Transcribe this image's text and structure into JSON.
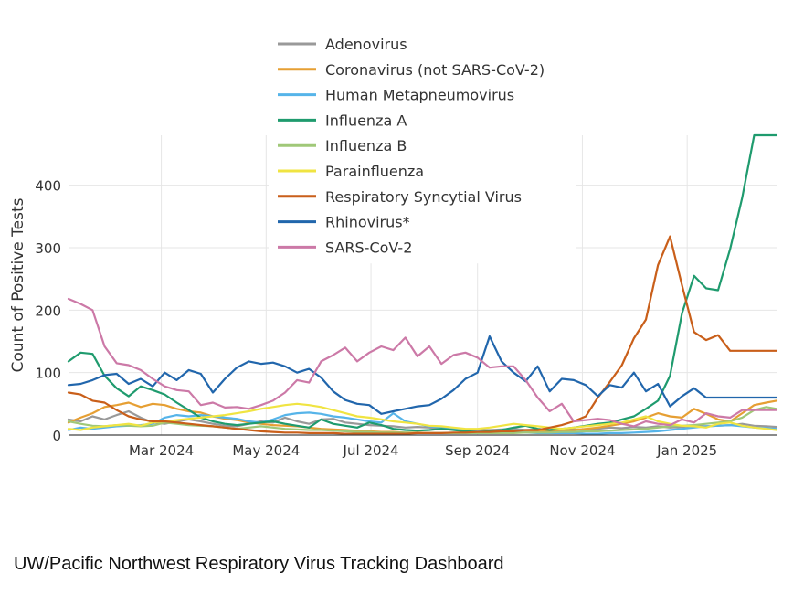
{
  "footer": {
    "title": "UW/Pacific Northwest Respiratory Virus Tracking Dashboard"
  },
  "chart_data": {
    "type": "line",
    "title": "",
    "xlabel": "",
    "ylabel": "Count of Positive Tests",
    "ylim": [
      0,
      480
    ],
    "yticks": [
      0,
      100,
      200,
      300,
      400
    ],
    "xlim": [
      "2024-01-07",
      "2025-02-22"
    ],
    "xticks": [
      {
        "date": "2024-03-01",
        "label": "Mar 2024"
      },
      {
        "date": "2024-05-01",
        "label": "May 2024"
      },
      {
        "date": "2024-07-01",
        "label": "Jul 2024"
      },
      {
        "date": "2024-09-01",
        "label": "Sep 2024"
      },
      {
        "date": "2024-11-01",
        "label": "Nov 2024"
      },
      {
        "date": "2025-01-01",
        "label": "Jan 2025"
      }
    ],
    "grid": true,
    "legend_position": "top-center",
    "x": [
      "2024-01-07",
      "2024-01-14",
      "2024-01-21",
      "2024-01-28",
      "2024-02-04",
      "2024-02-11",
      "2024-02-18",
      "2024-02-25",
      "2024-03-03",
      "2024-03-10",
      "2024-03-17",
      "2024-03-24",
      "2024-03-31",
      "2024-04-07",
      "2024-04-14",
      "2024-04-21",
      "2024-04-28",
      "2024-05-05",
      "2024-05-12",
      "2024-05-19",
      "2024-05-26",
      "2024-06-02",
      "2024-06-09",
      "2024-06-16",
      "2024-06-23",
      "2024-06-30",
      "2024-07-07",
      "2024-07-14",
      "2024-07-21",
      "2024-07-28",
      "2024-08-04",
      "2024-08-11",
      "2024-08-18",
      "2024-08-25",
      "2024-09-01",
      "2024-09-08",
      "2024-09-15",
      "2024-09-22",
      "2024-09-29",
      "2024-10-06",
      "2024-10-13",
      "2024-10-20",
      "2024-10-27",
      "2024-11-03",
      "2024-11-10",
      "2024-11-17",
      "2024-11-24",
      "2024-12-01",
      "2024-12-08",
      "2024-12-15",
      "2024-12-22",
      "2024-12-29",
      "2025-01-05",
      "2025-01-12",
      "2025-01-19",
      "2025-01-26",
      "2025-02-02",
      "2025-02-09",
      "2025-02-16",
      "2025-02-22"
    ],
    "series": [
      {
        "name": "Adenovirus",
        "color": "#999999",
        "values": [
          25,
          22,
          30,
          25,
          32,
          38,
          28,
          20,
          18,
          22,
          25,
          22,
          18,
          15,
          14,
          18,
          22,
          20,
          28,
          22,
          18,
          25,
          26,
          20,
          18,
          16,
          15,
          14,
          12,
          13,
          12,
          10,
          11,
          9,
          8,
          8,
          9,
          10,
          8,
          9,
          8,
          10,
          9,
          8,
          10,
          12,
          11,
          13,
          12,
          14,
          12,
          13,
          15,
          14,
          15,
          16,
          18,
          15,
          14,
          13
        ]
      },
      {
        "name": "Coronavirus (not SARS-CoV-2)",
        "color": "#E69F33",
        "values": [
          20,
          28,
          35,
          45,
          48,
          52,
          45,
          50,
          48,
          42,
          38,
          36,
          30,
          26,
          24,
          20,
          18,
          16,
          15,
          14,
          12,
          10,
          9,
          8,
          7,
          6,
          5,
          5,
          4,
          4,
          3,
          3,
          3,
          3,
          3,
          3,
          4,
          4,
          5,
          6,
          6,
          7,
          8,
          10,
          12,
          15,
          18,
          22,
          28,
          35,
          30,
          28,
          42,
          34,
          25,
          22,
          35,
          48,
          52,
          55
        ]
      },
      {
        "name": "Human Metapneumovirus",
        "color": "#56B4E9",
        "values": [
          8,
          12,
          10,
          12,
          14,
          15,
          16,
          18,
          28,
          32,
          30,
          32,
          30,
          28,
          26,
          22,
          20,
          25,
          32,
          35,
          36,
          34,
          30,
          28,
          25,
          22,
          20,
          35,
          22,
          18,
          14,
          12,
          10,
          8,
          6,
          5,
          5,
          4,
          4,
          3,
          3,
          3,
          3,
          2,
          2,
          3,
          3,
          4,
          5,
          6,
          8,
          10,
          12,
          14,
          15,
          16,
          14,
          12,
          11,
          10
        ]
      },
      {
        "name": "Influenza A",
        "color": "#1F9B6E",
        "values": [
          118,
          132,
          130,
          95,
          75,
          62,
          78,
          72,
          65,
          52,
          40,
          28,
          22,
          18,
          16,
          18,
          20,
          22,
          18,
          15,
          12,
          25,
          18,
          15,
          12,
          20,
          16,
          10,
          8,
          7,
          8,
          10,
          8,
          6,
          5,
          6,
          8,
          12,
          15,
          10,
          8,
          10,
          12,
          15,
          18,
          20,
          25,
          30,
          42,
          55,
          95,
          195,
          255,
          235,
          232,
          298,
          380,
          480,
          480,
          480
        ]
      },
      {
        "name": "Influenza B",
        "color": "#A0C878",
        "values": [
          22,
          18,
          15,
          14,
          16,
          15,
          14,
          15,
          20,
          18,
          16,
          15,
          14,
          12,
          10,
          12,
          14,
          12,
          10,
          9,
          8,
          8,
          7,
          6,
          5,
          5,
          4,
          4,
          4,
          3,
          3,
          3,
          3,
          3,
          3,
          3,
          3,
          3,
          4,
          4,
          4,
          5,
          5,
          6,
          6,
          7,
          8,
          9,
          10,
          12,
          14,
          15,
          16,
          18,
          20,
          22,
          28,
          40,
          45,
          42
        ]
      },
      {
        "name": "Parainfluenza",
        "color": "#F0E442",
        "values": [
          10,
          8,
          12,
          14,
          16,
          18,
          15,
          20,
          22,
          24,
          26,
          28,
          30,
          32,
          35,
          38,
          42,
          45,
          48,
          50,
          48,
          45,
          40,
          35,
          30,
          28,
          25,
          22,
          20,
          18,
          15,
          14,
          12,
          10,
          10,
          12,
          15,
          18,
          16,
          14,
          12,
          10,
          12,
          14,
          16,
          18,
          20,
          25,
          30,
          22,
          18,
          15,
          14,
          12,
          18,
          20,
          15,
          12,
          10,
          8
        ]
      },
      {
        "name": "Respiratory Syncytial Virus",
        "color": "#C95F1A",
        "values": [
          68,
          65,
          55,
          52,
          40,
          30,
          25,
          22,
          22,
          20,
          18,
          16,
          14,
          12,
          10,
          8,
          6,
          5,
          4,
          4,
          3,
          3,
          3,
          2,
          2,
          2,
          2,
          2,
          2,
          3,
          3,
          3,
          4,
          4,
          5,
          5,
          6,
          6,
          8,
          8,
          12,
          16,
          22,
          30,
          60,
          85,
          112,
          155,
          185,
          272,
          318,
          240,
          165,
          152,
          160,
          135,
          135,
          135,
          135,
          135
        ]
      },
      {
        "name": "Rhinovirus*",
        "color": "#2166AC",
        "values": [
          80,
          82,
          88,
          96,
          98,
          82,
          90,
          78,
          100,
          88,
          104,
          98,
          68,
          90,
          108,
          118,
          114,
          116,
          110,
          100,
          106,
          92,
          70,
          56,
          50,
          48,
          34,
          38,
          42,
          46,
          48,
          58,
          72,
          90,
          100,
          158,
          118,
          100,
          86,
          110,
          70,
          90,
          88,
          80,
          62,
          80,
          76,
          100,
          70,
          82,
          46,
          62,
          75,
          60,
          60,
          60,
          60,
          60,
          60,
          60
        ]
      },
      {
        "name": "SARS-CoV-2",
        "color": "#CC79A7",
        "values": [
          218,
          210,
          200,
          142,
          115,
          112,
          104,
          90,
          78,
          72,
          70,
          48,
          52,
          44,
          45,
          42,
          48,
          55,
          68,
          88,
          84,
          118,
          128,
          140,
          118,
          132,
          142,
          136,
          156,
          126,
          142,
          114,
          128,
          132,
          124,
          108,
          110,
          110,
          88,
          60,
          38,
          50,
          22,
          24,
          26,
          24,
          18,
          14,
          22,
          18,
          16,
          25,
          20,
          35,
          30,
          28,
          40,
          40,
          40,
          40
        ]
      }
    ]
  }
}
